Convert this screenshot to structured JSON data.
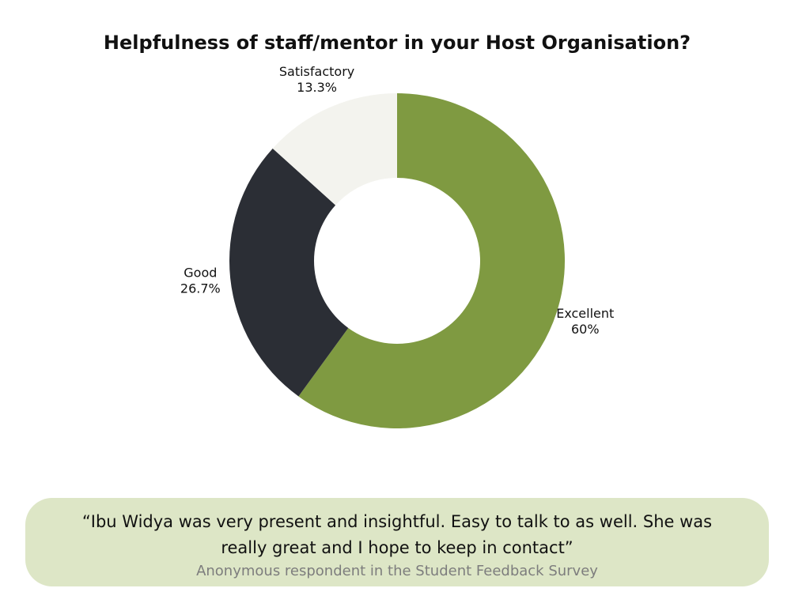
{
  "chart_data": {
    "type": "donut",
    "title": "Helpfulness of staff/mentor in your Host Organisation?",
    "categories": [
      "Excellent",
      "Good",
      "Satisfactory"
    ],
    "values": [
      60,
      26.7,
      13.3
    ],
    "value_labels": [
      "60%",
      "26.7%",
      "13.3%"
    ],
    "colors": [
      "#7f9a41",
      "#2b2e35",
      "#f3f3ee"
    ]
  },
  "quote": {
    "text": "“Ibu Widya was very present and insightful. Easy to talk to as well. She was really great and I hope to keep in contact”",
    "attribution": "Anonymous respondent in the Student Feedback Survey"
  }
}
